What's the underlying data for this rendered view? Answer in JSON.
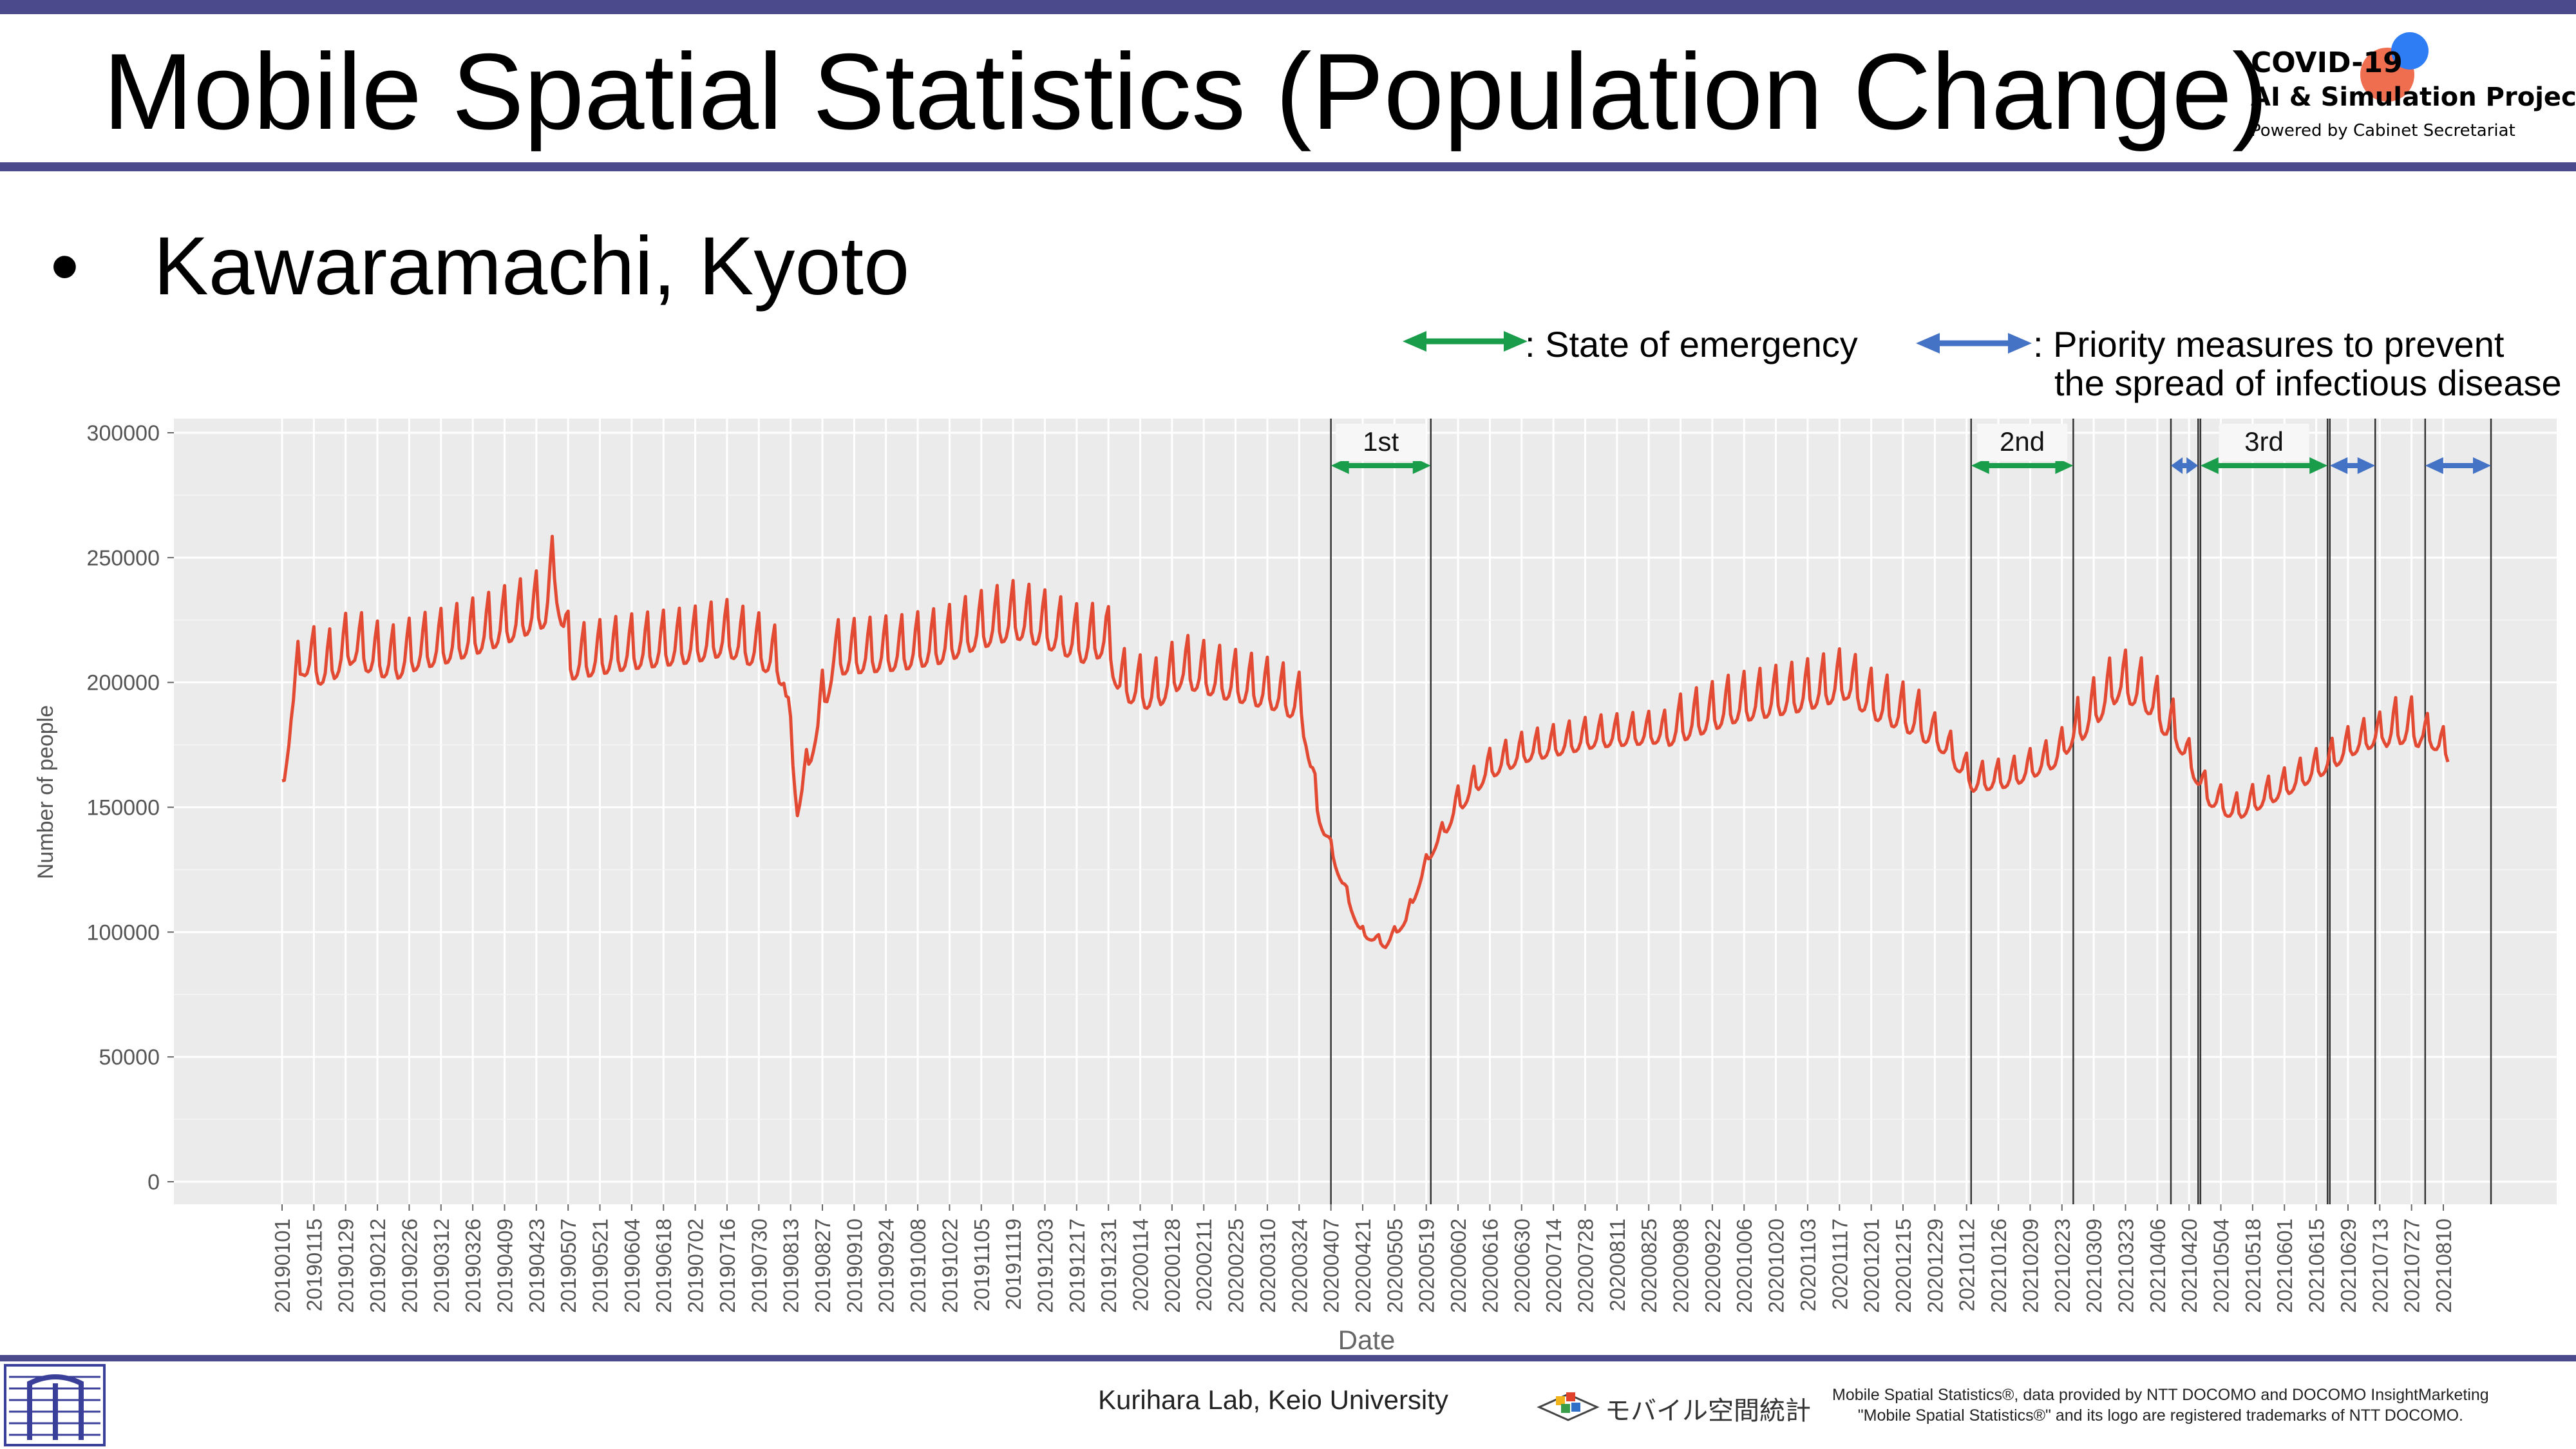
{
  "title": "Mobile Spatial Statistics (Population Change)",
  "brand": {
    "line1": "COVID-19",
    "line2": "AI & Simulation Project",
    "line3": "Powered by Cabinet Secretariat"
  },
  "bullet": {
    "symbol": "•",
    "text": "Kawaramachi, Kyoto"
  },
  "legend": {
    "emergency_label": ": State of emergency",
    "priority_label_1": ": Priority measures to prevent",
    "priority_label_2": "the spread of infectious disease"
  },
  "colors": {
    "series": "#e34a33",
    "emergency": "#1a9d4a",
    "priority": "#4472c4",
    "panel": "#ebebeb",
    "accent_bar": "#4b4a8c"
  },
  "footer": {
    "lab": "Kurihara Lab, Keio University",
    "logo_text": "モバイル空間統計",
    "note_1": "Mobile Spatial Statistics®, data provided by NTT DOCOMO and DOCOMO InsightMarketing",
    "note_2": "\"Mobile Spatial Statistics®\" and its logo are registered trademarks of NTT DOCOMO."
  },
  "chart_data": {
    "type": "line",
    "xlabel": "Date",
    "ylabel": "Number of people",
    "ylim": [
      0,
      300000
    ],
    "yticks": [
      0,
      50000,
      100000,
      150000,
      200000,
      250000,
      300000
    ],
    "x_ticks": [
      "20190101",
      "20190115",
      "20190129",
      "20190212",
      "20190226",
      "20190312",
      "20190326",
      "20190409",
      "20190423",
      "20190507",
      "20190521",
      "20190604",
      "20190618",
      "20190702",
      "20190716",
      "20190730",
      "20190813",
      "20190827",
      "20190910",
      "20190924",
      "20191008",
      "20191022",
      "20191105",
      "20191119",
      "20191203",
      "20191217",
      "20191231",
      "20200114",
      "20200128",
      "20200211",
      "20200225",
      "20200310",
      "20200324",
      "20200407",
      "20200421",
      "20200505",
      "20200519",
      "20200602",
      "20200616",
      "20200630",
      "20200714",
      "20200728",
      "20200811",
      "20200825",
      "20200908",
      "20200922",
      "20201006",
      "20201020",
      "20201103",
      "20201117",
      "20201201",
      "20201215",
      "20201229",
      "20210112",
      "20210126",
      "20210209",
      "20210223",
      "20210309",
      "20210323",
      "20210406",
      "20210420",
      "20210504",
      "20210518",
      "20210601",
      "20210615",
      "20210629",
      "20210713",
      "20210727",
      "20210810"
    ],
    "x_range": [
      "2019-01-01",
      "2021-08-15"
    ],
    "grid": true,
    "series": [
      {
        "x": [
          "2019-01-01",
          "2019-01-05",
          "2019-01-10",
          "2019-01-20",
          "2019-02-01",
          "2019-02-10",
          "2019-02-20",
          "2019-03-01",
          "2019-03-15",
          "2019-04-01",
          "2019-04-15",
          "2019-04-27",
          "2019-05-01",
          "2019-05-08",
          "2019-06-01",
          "2019-07-01",
          "2019-07-15",
          "2019-08-01",
          "2019-08-10",
          "2019-08-16",
          "2019-09-01",
          "2019-10-01",
          "2019-10-20",
          "2019-11-01",
          "2019-11-20",
          "2019-12-01",
          "2019-12-20",
          "2019-12-30",
          "2020-01-05",
          "2020-01-20",
          "2020-02-01",
          "2020-02-20",
          "2020-03-01",
          "2020-03-15",
          "2020-03-25",
          "2020-04-01",
          "2020-04-10",
          "2020-04-20",
          "2020-05-01",
          "2020-05-10",
          "2020-05-20",
          "2020-06-01",
          "2020-06-15",
          "2020-07-01",
          "2020-08-01",
          "2020-09-01",
          "2020-10-01",
          "2020-11-01",
          "2020-11-20",
          "2020-12-01",
          "2020-12-20",
          "2020-12-28",
          "2021-01-05",
          "2021-01-15",
          "2021-02-01",
          "2021-02-20",
          "2021-03-01",
          "2021-03-20",
          "2021-04-01",
          "2021-04-15",
          "2021-04-28",
          "2021-05-10",
          "2021-06-01",
          "2021-06-20",
          "2021-07-01",
          "2021-07-15",
          "2021-07-25",
          "2021-08-05",
          "2021-08-12"
        ],
        "y": [
          153000,
          190000,
          210000,
          205000,
          215000,
          210000,
          208000,
          212000,
          215000,
          220000,
          225000,
          230000,
          245000,
          208000,
          212000,
          215000,
          218000,
          212000,
          205000,
          150000,
          210000,
          212000,
          215000,
          220000,
          225000,
          222000,
          215000,
          218000,
          200000,
          195000,
          205000,
          200000,
          198000,
          195000,
          190000,
          150000,
          125000,
          100000,
          95000,
          105000,
          130000,
          150000,
          165000,
          172000,
          178000,
          180000,
          190000,
          195000,
          200000,
          192000,
          185000,
          180000,
          172000,
          160000,
          162000,
          170000,
          180000,
          200000,
          195000,
          178000,
          155000,
          148000,
          158000,
          168000,
          175000,
          180000,
          182000,
          178000,
          172000
        ]
      }
    ],
    "phases": [
      {
        "label": "1st",
        "type": "emergency",
        "start": "2020-04-07",
        "end": "2020-05-21"
      },
      {
        "label": "2nd",
        "type": "emergency",
        "start": "2021-01-14",
        "end": "2021-02-28"
      },
      {
        "label": "",
        "type": "priority",
        "start": "2021-04-12",
        "end": "2021-04-24"
      },
      {
        "label": "3rd",
        "type": "emergency",
        "start": "2021-04-25",
        "end": "2021-06-20"
      },
      {
        "label": "",
        "type": "priority",
        "start": "2021-06-21",
        "end": "2021-07-11"
      },
      {
        "label": "",
        "type": "priority",
        "start": "2021-08-02",
        "end": "2021-08-31"
      }
    ]
  }
}
